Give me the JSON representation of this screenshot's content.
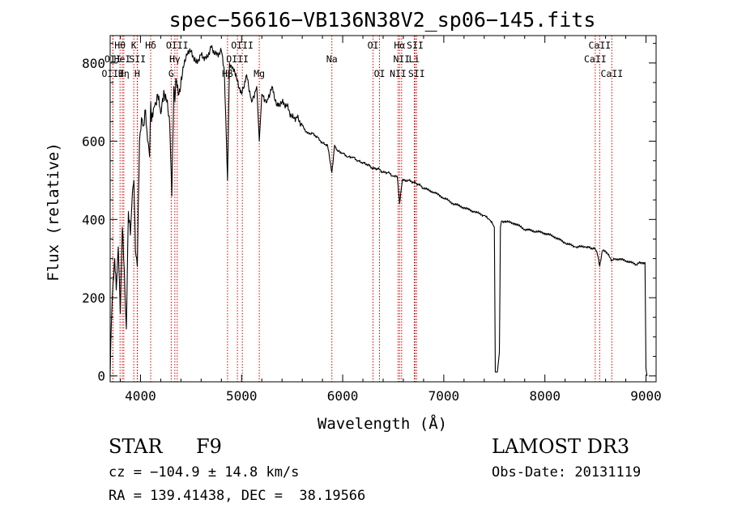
{
  "chart_data": {
    "type": "line",
    "title": "spec−56616−VB136N38V2_sp06−145.fits",
    "xlabel": "Wavelength (Å)",
    "ylabel": "Flux (relative)",
    "xlim": [
      3700,
      9100
    ],
    "ylim": [
      -15,
      870
    ],
    "x_ticks": [
      4000,
      5000,
      6000,
      7000,
      8000,
      9000
    ],
    "y_ticks": [
      0,
      200,
      400,
      600,
      800
    ],
    "series": [
      {
        "name": "flux",
        "x": [
          3700,
          3715,
          3730,
          3745,
          3760,
          3780,
          3800,
          3820,
          3840,
          3860,
          3880,
          3900,
          3920,
          3935,
          3950,
          3968,
          3990,
          4010,
          4030,
          4050,
          4070,
          4090,
          4101,
          4110,
          4140,
          4170,
          4200,
          4230,
          4260,
          4290,
          4310,
          4330,
          4340,
          4350,
          4380,
          4420,
          4460,
          4500,
          4550,
          4600,
          4650,
          4700,
          4750,
          4800,
          4830,
          4861,
          4880,
          4910,
          4950,
          5000,
          5050,
          5100,
          5150,
          5175,
          5200,
          5250,
          5300,
          5350,
          5400,
          5450,
          5500,
          5550,
          5600,
          5650,
          5700,
          5750,
          5800,
          5850,
          5893,
          5920,
          5950,
          6000,
          6050,
          6100,
          6150,
          6200,
          6250,
          6300,
          6350,
          6400,
          6450,
          6500,
          6540,
          6563,
          6590,
          6650,
          6700,
          6750,
          6800,
          6900,
          7000,
          7100,
          7200,
          7300,
          7400,
          7450,
          7480,
          7500,
          7510,
          7530,
          7550,
          7560,
          7570,
          7600,
          7700,
          7800,
          7900,
          8000,
          8100,
          8200,
          8300,
          8400,
          8498,
          8520,
          8542,
          8570,
          8600,
          8662,
          8700,
          8800,
          8900,
          8950,
          8990,
          9000,
          9010
        ],
        "y": [
          0,
          160,
          240,
          300,
          220,
          330,
          160,
          380,
          270,
          120,
          420,
          360,
          470,
          500,
          320,
          280,
          600,
          660,
          640,
          680,
          600,
          560,
          700,
          650,
          690,
          720,
          670,
          730,
          700,
          640,
          460,
          740,
          700,
          760,
          720,
          790,
          820,
          830,
          800,
          820,
          810,
          840,
          820,
          830,
          780,
          500,
          800,
          790,
          760,
          720,
          770,
          700,
          740,
          600,
          720,
          700,
          740,
          690,
          700,
          690,
          660,
          660,
          640,
          620,
          620,
          610,
          595,
          590,
          520,
          590,
          575,
          570,
          560,
          560,
          550,
          545,
          540,
          530,
          530,
          520,
          520,
          510,
          510,
          440,
          500,
          500,
          495,
          490,
          480,
          470,
          455,
          440,
          430,
          420,
          410,
          400,
          390,
          380,
          10,
          10,
          60,
          380,
          395,
          395,
          390,
          375,
          370,
          365,
          355,
          340,
          330,
          330,
          325,
          310,
          280,
          320,
          320,
          295,
          300,
          295,
          285,
          290,
          290,
          20,
          0
        ]
      }
    ],
    "lines": [
      {
        "name": "Hθ",
        "x": 3798,
        "row": 1
      },
      {
        "name": "OII",
        "x": 3727,
        "row": 2
      },
      {
        "name": "OIII",
        "x": 3727,
        "row": 3
      },
      {
        "name": "HeI",
        "x": 3820,
        "row": 2
      },
      {
        "name": "Hη",
        "x": 3835,
        "row": 3
      },
      {
        "name": "K",
        "x": 3934,
        "row": 1
      },
      {
        "name": "SII",
        "x": 3970,
        "row": 2
      },
      {
        "name": "H",
        "x": 3968,
        "row": 3
      },
      {
        "name": "Hδ",
        "x": 4101,
        "row": 1
      },
      {
        "name": "OIII",
        "x": 4363,
        "row": 1
      },
      {
        "name": "Hγ",
        "x": 4340,
        "row": 2
      },
      {
        "name": "G",
        "x": 4304,
        "row": 3
      },
      {
        "name": "Hβ",
        "x": 4861,
        "row": 3
      },
      {
        "name": "OIII",
        "x": 5007,
        "row": 1
      },
      {
        "name": "OIII",
        "x": 4959,
        "row": 2
      },
      {
        "name": "Mg",
        "x": 5175,
        "row": 3
      },
      {
        "name": "Na",
        "x": 5893,
        "row": 2
      },
      {
        "name": "OI",
        "x": 6300,
        "row": 1
      },
      {
        "name": "OI",
        "x": 6364,
        "row": 3
      },
      {
        "name": "Hα",
        "x": 6563,
        "row": 1
      },
      {
        "name": "NII",
        "x": 6583,
        "row": 2
      },
      {
        "name": "NII",
        "x": 6548,
        "row": 3
      },
      {
        "name": "SII",
        "x": 6717,
        "row": 1
      },
      {
        "name": "Li",
        "x": 6708,
        "row": 2
      },
      {
        "name": "SII",
        "x": 6731,
        "row": 3
      },
      {
        "name": "CaII",
        "x": 8542,
        "row": 1
      },
      {
        "name": "CaII",
        "x": 8498,
        "row": 2
      },
      {
        "name": "CaII",
        "x": 8662,
        "row": 3
      }
    ]
  },
  "info": {
    "object_class": "STAR",
    "subclass": "F9",
    "survey": "LAMOST DR3",
    "cz": "cz = −104.9 ± 14.8 km/s",
    "obs_date": "Obs-Date: 20131119",
    "coords": "RA = 139.41438, DEC =  38.19566"
  },
  "colors": {
    "line_marker": "#cc0000",
    "spectrum": "#000000"
  }
}
